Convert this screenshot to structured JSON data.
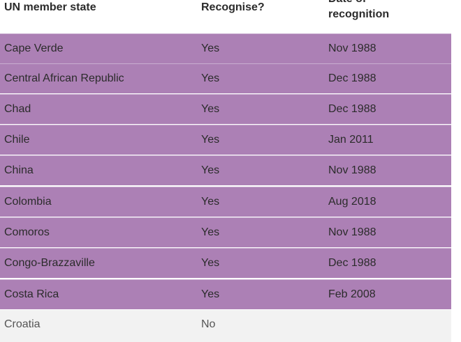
{
  "headers": {
    "state": "UN member state",
    "recognise": "Recognise?",
    "date": "Date of recognition"
  },
  "rows": [
    {
      "state": "Cape Verde",
      "recognise": "Yes",
      "date": "Nov 1988"
    },
    {
      "state": "Central African Republic",
      "recognise": "Yes",
      "date": "Dec 1988"
    },
    {
      "state": "Chad",
      "recognise": "Yes",
      "date": "Dec 1988"
    },
    {
      "state": "Chile",
      "recognise": "Yes",
      "date": "Jan 2011"
    },
    {
      "state": "China",
      "recognise": "Yes",
      "date": "Nov 1988"
    },
    {
      "state": "Colombia",
      "recognise": "Yes",
      "date": "Aug 2018"
    },
    {
      "state": "Comoros",
      "recognise": "Yes",
      "date": "Nov 1988"
    },
    {
      "state": "Congo-Brazzaville",
      "recognise": "Yes",
      "date": "Dec 1988"
    },
    {
      "state": "Costa Rica",
      "recognise": "Yes",
      "date": "Feb 2008"
    },
    {
      "state": "Croatia",
      "recognise": "No",
      "date": ""
    }
  ],
  "colors": {
    "recognised_row": "#ac80b5",
    "not_recognised_row": "#f2f2f2"
  }
}
